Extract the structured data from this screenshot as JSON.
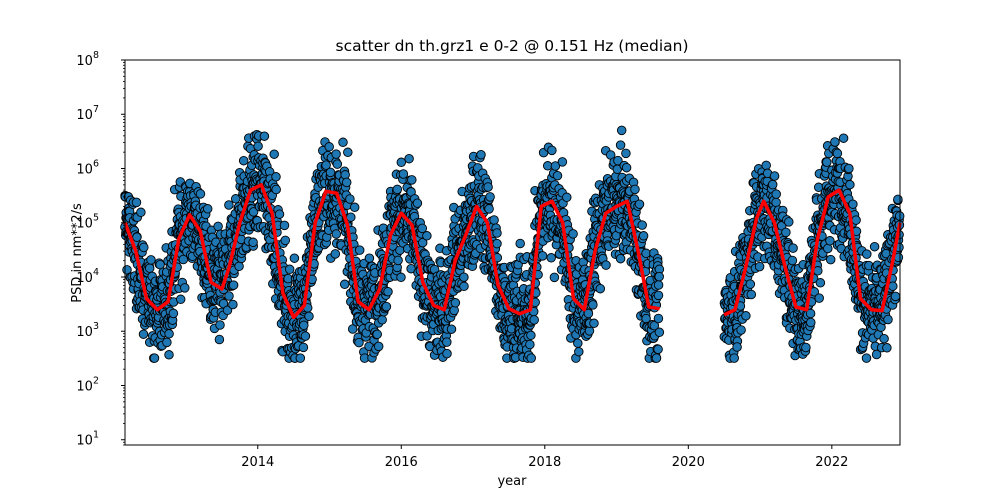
{
  "chart_data": {
    "type": "scatter",
    "title": "scatter dn th.grz1 e 0-2 @ 0.151 Hz (median)",
    "xlabel": "year",
    "ylabel": "PSD in nm**2/s",
    "xlim": [
      2012.15,
      2022.95
    ],
    "ylim": [
      8,
      100000000
    ],
    "yscale": "log",
    "grid": false,
    "legend": "none",
    "x_ticks": [
      {
        "value": 2014,
        "label": "2014"
      },
      {
        "value": 2016,
        "label": "2016"
      },
      {
        "value": 2018,
        "label": "2018"
      },
      {
        "value": 2020,
        "label": "2020"
      },
      {
        "value": 2022,
        "label": "2022"
      }
    ],
    "y_ticks": [
      {
        "value": 10,
        "base": "10",
        "exp": "1"
      },
      {
        "value": 100,
        "base": "10",
        "exp": "2"
      },
      {
        "value": 1000,
        "base": "10",
        "exp": "3"
      },
      {
        "value": 10000,
        "base": "10",
        "exp": "4"
      },
      {
        "value": 100000,
        "base": "10",
        "exp": "5"
      },
      {
        "value": 1000000,
        "base": "10",
        "exp": "6"
      },
      {
        "value": 10000000,
        "base": "10",
        "exp": "7"
      },
      {
        "value": 100000000,
        "base": "10",
        "exp": "8"
      }
    ],
    "colors": {
      "scatter_fill": "#1f77b4",
      "scatter_edge": "#000000",
      "median_line": "#ff0000"
    },
    "data_gap": [
      2019.65,
      2020.45
    ],
    "series": [
      {
        "kind": "median-line",
        "x": [
          2012.15,
          2012.3,
          2012.45,
          2012.6,
          2012.75,
          2012.9,
          2013.05,
          2013.2,
          2013.35,
          2013.5,
          2013.6,
          2013.75,
          2013.9,
          2014.05,
          2014.2,
          2014.35,
          2014.5,
          2014.65,
          2014.8,
          2014.95,
          2015.1,
          2015.25,
          2015.4,
          2015.55,
          2015.7,
          2015.85,
          2016.0,
          2016.15,
          2016.3,
          2016.45,
          2016.6,
          2016.75,
          2016.9,
          2017.05,
          2017.2,
          2017.35,
          2017.5,
          2017.65,
          2017.8,
          2017.95,
          2018.1,
          2018.25,
          2018.4,
          2018.55,
          2018.7,
          2018.85,
          2019.0,
          2019.15,
          2019.3,
          2019.45,
          2019.6
        ],
        "y": [
          100000,
          30000,
          4000,
          2500,
          3500,
          50000,
          140000,
          70000,
          8000,
          6000,
          15000,
          100000,
          400000,
          500000,
          150000,
          5000,
          1800,
          3000,
          100000,
          380000,
          350000,
          90000,
          3500,
          2500,
          6000,
          60000,
          150000,
          90000,
          8000,
          3000,
          2500,
          20000,
          60000,
          200000,
          100000,
          7000,
          2600,
          2100,
          2500,
          200000,
          250000,
          100000,
          4000,
          2500,
          30000,
          150000,
          200000,
          250000,
          30000,
          2800,
          2600
        ]
      },
      {
        "kind": "median-line",
        "x": [
          2020.5,
          2020.65,
          2020.8,
          2020.95,
          2021.05,
          2021.2,
          2021.35,
          2021.5,
          2021.65,
          2021.8,
          2021.95,
          2022.1,
          2022.25,
          2022.4,
          2022.55,
          2022.7,
          2022.85,
          2022.95
        ],
        "y": [
          2000,
          2500,
          15000,
          120000,
          250000,
          100000,
          15000,
          2800,
          2500,
          50000,
          300000,
          400000,
          150000,
          4000,
          2500,
          2400,
          20000,
          100000
        ]
      }
    ]
  }
}
